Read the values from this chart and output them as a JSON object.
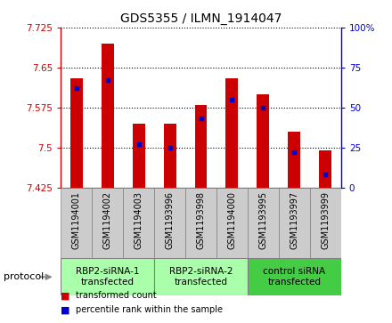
{
  "title": "GDS5355 / ILMN_1914047",
  "samples": [
    "GSM1194001",
    "GSM1194002",
    "GSM1194003",
    "GSM1193996",
    "GSM1193998",
    "GSM1194000",
    "GSM1193995",
    "GSM1193997",
    "GSM1193999"
  ],
  "transformed_counts": [
    7.63,
    7.695,
    7.545,
    7.545,
    7.58,
    7.63,
    7.6,
    7.53,
    7.495
  ],
  "percentile_ranks": [
    62,
    67,
    27,
    25,
    43,
    55,
    50,
    22,
    8
  ],
  "ylim": [
    7.425,
    7.725
  ],
  "yticks": [
    7.425,
    7.5,
    7.575,
    7.65,
    7.725
  ],
  "ytick_labels": [
    "7.425",
    "7.5",
    "7.575",
    "7.65",
    "7.725"
  ],
  "y2ticks": [
    0,
    25,
    50,
    75,
    100
  ],
  "y2tick_labels": [
    "0",
    "25",
    "50",
    "75",
    "100%"
  ],
  "bar_color": "#cc0000",
  "percentile_color": "#0000cc",
  "bar_width": 0.4,
  "groups": [
    {
      "label": "RBP2-siRNA-1\ntransfected",
      "start": 0,
      "end": 2,
      "color": "#aaffaa"
    },
    {
      "label": "RBP2-siRNA-2\ntransfected",
      "start": 3,
      "end": 5,
      "color": "#aaffaa"
    },
    {
      "label": "control siRNA\ntransfected",
      "start": 6,
      "end": 8,
      "color": "#44cc44"
    }
  ],
  "protocol_label": "protocol",
  "legend_items": [
    {
      "label": "transformed count",
      "color": "#cc0000"
    },
    {
      "label": "percentile rank within the sample",
      "color": "#0000cc"
    }
  ],
  "left_axis_color": "#cc0000",
  "right_axis_color": "#0000cc",
  "grid_linestyle": "dotted",
  "background_color": "#ffffff",
  "plot_bg_color": "#ffffff",
  "sample_label_bg": "#cccccc",
  "title_fontsize": 10,
  "tick_fontsize": 7.5,
  "sample_fontsize": 7,
  "group_fontsize": 7.5
}
